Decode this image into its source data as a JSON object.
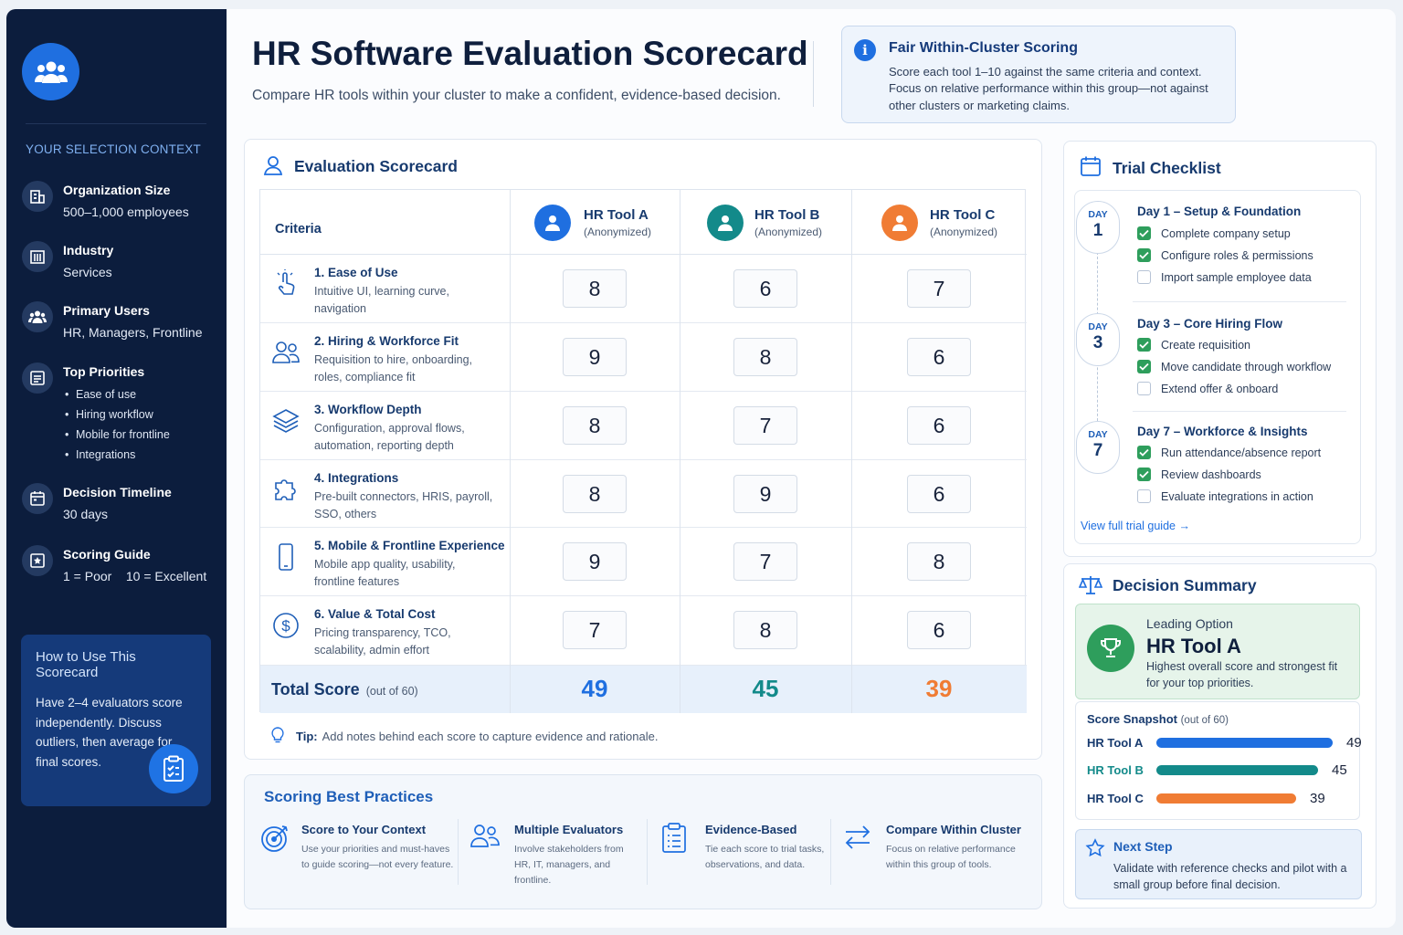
{
  "header": {
    "title": "HR Software Evaluation Scorecard",
    "subtitle": "Compare HR tools within your cluster to make a confident, evidence-based decision."
  },
  "info": {
    "title": "Fair Within-Cluster Scoring",
    "text": "Score each tool 1–10 against the same criteria and context. Focus on relative performance within this group—not against other clusters or marketing claims."
  },
  "sidebar": {
    "section_title": "YOUR SELECTION CONTEXT",
    "items": [
      {
        "label": "Organization Size",
        "value": "500–1,000 employees",
        "icon": "building-icon"
      },
      {
        "label": "Industry",
        "value": "Services",
        "icon": "industry-icon"
      },
      {
        "label": "Primary Users",
        "value": "HR, Managers, Frontline",
        "icon": "users-icon"
      },
      {
        "label": "Top Priorities",
        "icon": "priorities-icon",
        "list": [
          "Ease of use",
          "Hiring workflow",
          "Mobile for frontline",
          "Integrations"
        ]
      },
      {
        "label": "Decision Timeline",
        "value": "30 days",
        "icon": "calendar-icon"
      },
      {
        "label": "Scoring Guide",
        "value": "1 = Poor    10 = Excellent",
        "icon": "scoring-icon"
      }
    ],
    "howto": {
      "title": "How to Use This Scorecard",
      "text": "Have 2–4 evaluators score independently. Discuss outliers, then average for final scores."
    }
  },
  "scorecard": {
    "title": "Evaluation Scorecard",
    "criteria_header": "Criteria",
    "tools": [
      {
        "name": "HR Tool A",
        "sub": "(Anonymized)",
        "color": "#1f6fe0"
      },
      {
        "name": "HR Tool B",
        "sub": "(Anonymized)",
        "color": "#138a8a"
      },
      {
        "name": "HR Tool C",
        "sub": "(Anonymized)",
        "color": "#f07c34"
      }
    ],
    "criteria": [
      {
        "name": "1. Ease of Use",
        "desc": "Intuitive UI, learning curve, navigation",
        "icon": "pointer-icon",
        "scores": [
          "8",
          "6",
          "7"
        ]
      },
      {
        "name": "2. Hiring & Workforce Fit",
        "desc": "Requisition to hire, onboarding, roles, compliance fit",
        "icon": "people-icon",
        "scores": [
          "9",
          "8",
          "6"
        ]
      },
      {
        "name": "3. Workflow Depth",
        "desc": "Configuration, approval flows, automation, reporting depth",
        "icon": "layers-icon",
        "scores": [
          "8",
          "7",
          "6"
        ]
      },
      {
        "name": "4. Integrations",
        "desc": "Pre-built connectors, HRIS, payroll, SSO, others",
        "icon": "puzzle-icon",
        "scores": [
          "8",
          "9",
          "6"
        ]
      },
      {
        "name": "5. Mobile & Frontline Experience",
        "desc": "Mobile app quality, usability, frontline features",
        "icon": "phone-icon",
        "scores": [
          "9",
          "7",
          "8"
        ]
      },
      {
        "name": "6. Value & Total Cost",
        "desc": "Pricing transparency, TCO, scalability, admin effort",
        "icon": "dollar-icon",
        "scores": [
          "7",
          "8",
          "6"
        ]
      }
    ],
    "total_label": "Total Score",
    "total_sub": "(out of 60)",
    "totals": [
      "49",
      "45",
      "39"
    ],
    "tip_label": "Tip:",
    "tip_text": "Add notes behind each score to capture evidence and rationale."
  },
  "best_practices": {
    "title": "Scoring Best Practices",
    "items": [
      {
        "title": "Score to Your Context",
        "desc": "Use your priorities and must-haves to guide scoring—not every feature.",
        "icon": "target-icon"
      },
      {
        "title": "Multiple Evaluators",
        "desc": "Involve stakeholders from HR, IT, managers, and frontline.",
        "icon": "evaluators-icon"
      },
      {
        "title": "Evidence-Based",
        "desc": "Tie each score to trial tasks, observations, and data.",
        "icon": "clipboard-icon"
      },
      {
        "title": "Compare Within Cluster",
        "desc": "Focus on relative performance within this group of tools.",
        "icon": "arrows-icon"
      }
    ]
  },
  "trial": {
    "title": "Trial Checklist",
    "day_label": "DAY",
    "days": [
      {
        "num": "1",
        "title": "Day 1 – Setup & Foundation",
        "tasks": [
          {
            "text": "Complete company setup",
            "done": true
          },
          {
            "text": "Configure roles & permissions",
            "done": true
          },
          {
            "text": "Import sample employee data",
            "done": false
          }
        ]
      },
      {
        "num": "3",
        "title": "Day 3 – Core Hiring Flow",
        "tasks": [
          {
            "text": "Create requisition",
            "done": true
          },
          {
            "text": "Move candidate through workflow",
            "done": true
          },
          {
            "text": "Extend offer & onboard",
            "done": false
          }
        ]
      },
      {
        "num": "7",
        "title": "Day 7 – Workforce & Insights",
        "tasks": [
          {
            "text": "Run attendance/absence report",
            "done": true
          },
          {
            "text": "Review dashboards",
            "done": true
          },
          {
            "text": "Evaluate integrations in action",
            "done": false
          }
        ]
      }
    ],
    "link": "View full trial guide →"
  },
  "summary": {
    "title": "Decision Summary",
    "leading_label": "Leading Option",
    "leading_name": "HR Tool A",
    "leading_desc": "Highest overall score and strongest fit for your top priorities.",
    "snapshot_title": "Score Snapshot",
    "snapshot_sub": "(out of 60)",
    "snapshot": [
      {
        "name": "HR Tool A",
        "value": 49,
        "label": "49",
        "color": "#1f6fe0"
      },
      {
        "name": "HR Tool B",
        "value": 45,
        "label": "45",
        "color": "#138a8a"
      },
      {
        "name": "HR Tool C",
        "value": 39,
        "label": "39",
        "color": "#f07c34"
      }
    ],
    "next_title": "Next Step",
    "next_text": "Validate with reference checks and pilot with a small group before final decision."
  }
}
